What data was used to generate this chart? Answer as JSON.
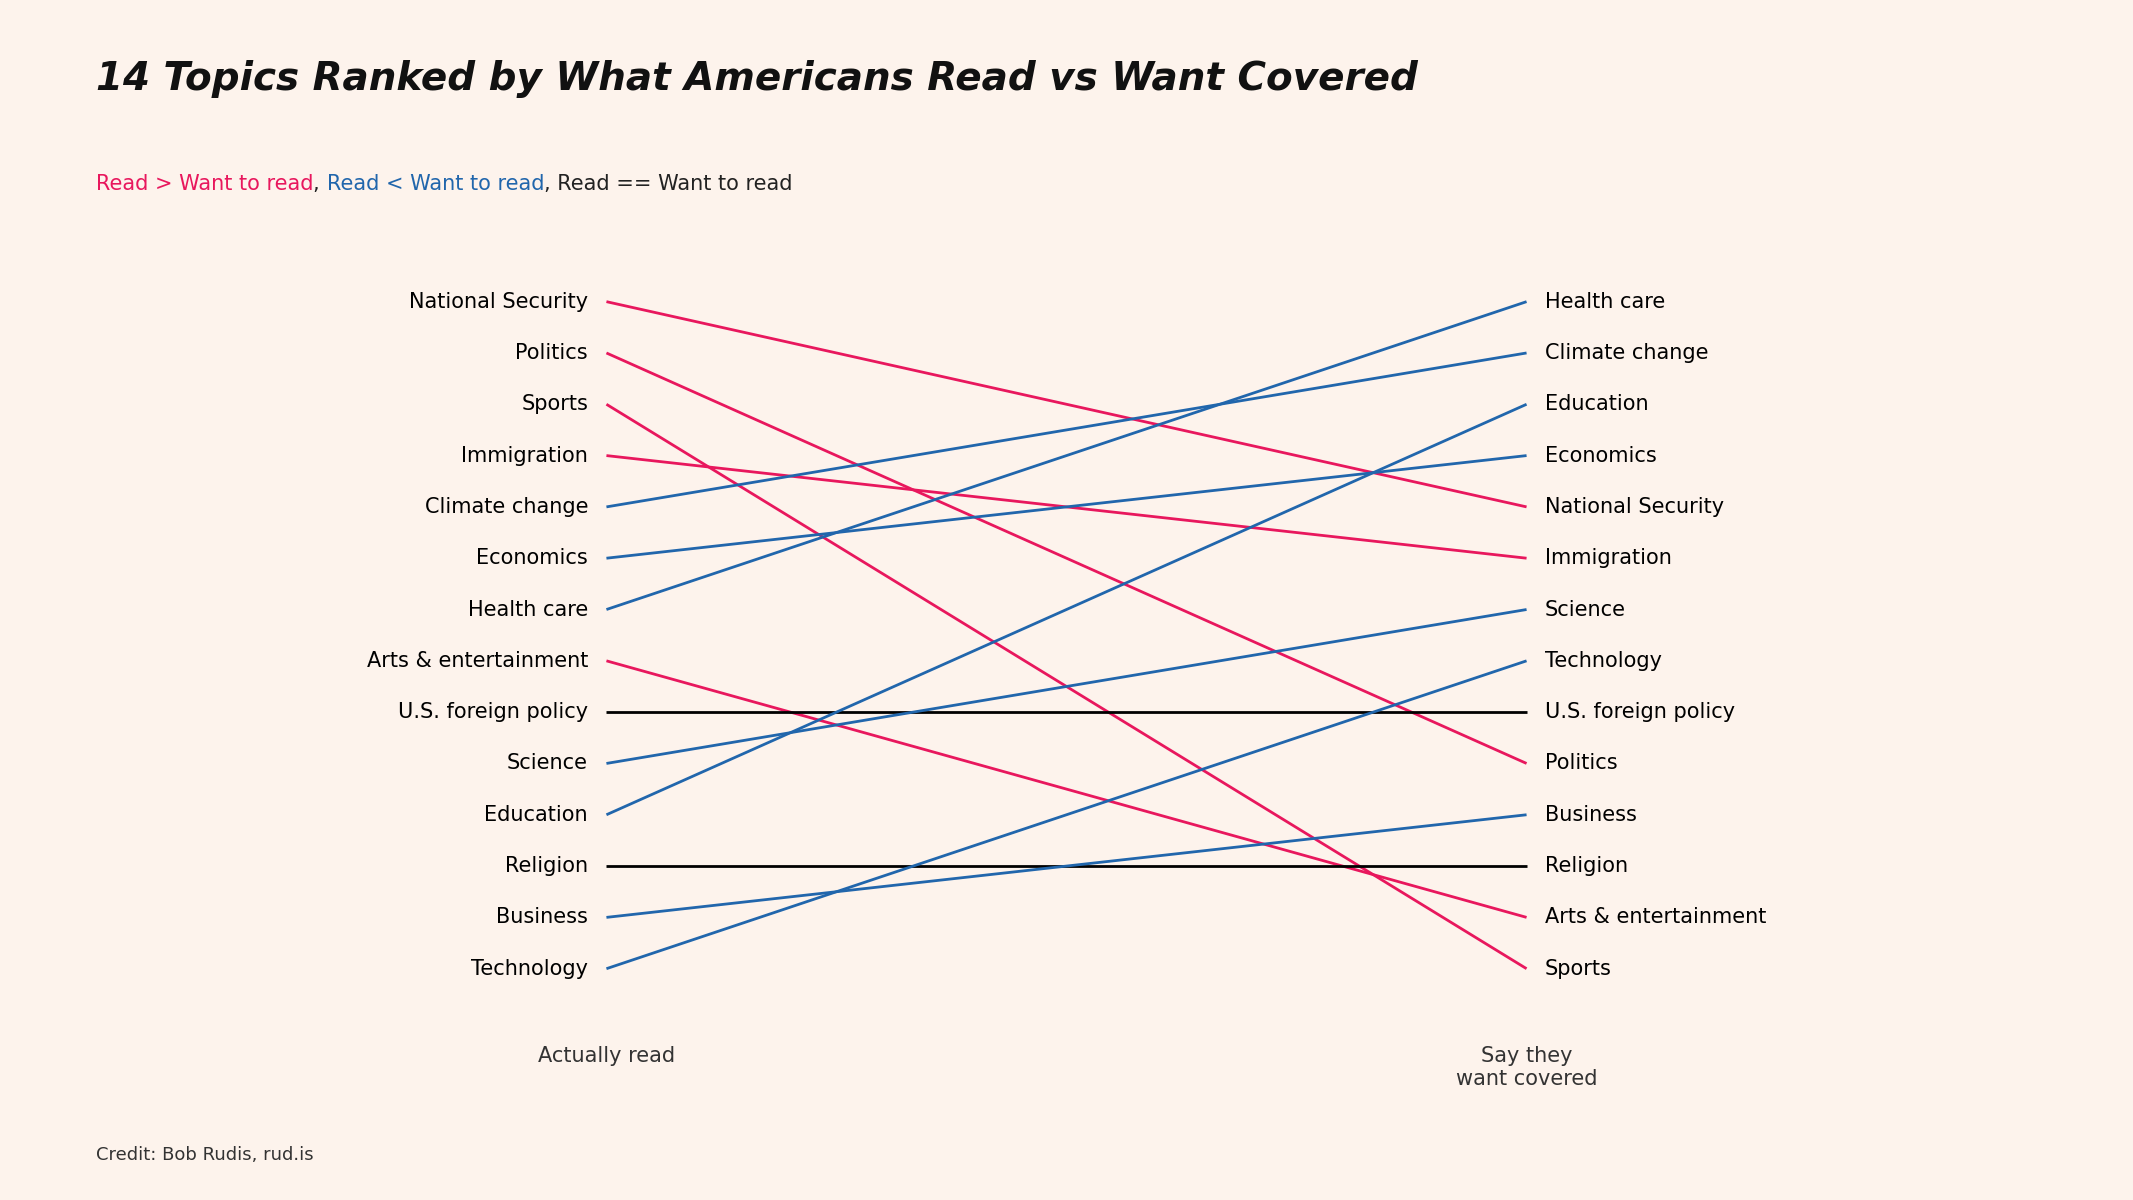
{
  "title": "14 Topics Ranked by What Americans Read vs Want Covered",
  "subtitle_parts": [
    {
      "text": "Read > Want to read",
      "color": "#e8175d"
    },
    {
      "text": ", ",
      "color": "#222222"
    },
    {
      "text": "Read < Want to read",
      "color": "#2166ac"
    },
    {
      "text": ", Read == Want to read",
      "color": "#222222"
    }
  ],
  "credit": "Credit: Bob Rudis, rud.is",
  "left_label": "Actually read",
  "right_label": "Say they\nwant covered",
  "background_color": "#fdf3ec",
  "left_topics": [
    "National Security",
    "Politics",
    "Sports",
    "Immigration",
    "Climate change",
    "Economics",
    "Health care",
    "Arts & entertainment",
    "U.S. foreign policy",
    "Science",
    "Education",
    "Religion",
    "Business",
    "Technology"
  ],
  "right_topics": [
    "Health care",
    "Climate change",
    "Education",
    "Economics",
    "National Security",
    "Immigration",
    "Science",
    "Technology",
    "U.S. foreign policy",
    "Politics",
    "Business",
    "Religion",
    "Arts & entertainment",
    "Sports"
  ],
  "color_read_more": "#e8175d",
  "color_want_more": "#2166ac",
  "color_equal": "#000000",
  "line_width": 2.0,
  "title_fontsize": 28,
  "subtitle_fontsize": 15,
  "label_fontsize": 15,
  "axis_label_fontsize": 15,
  "credit_fontsize": 13
}
